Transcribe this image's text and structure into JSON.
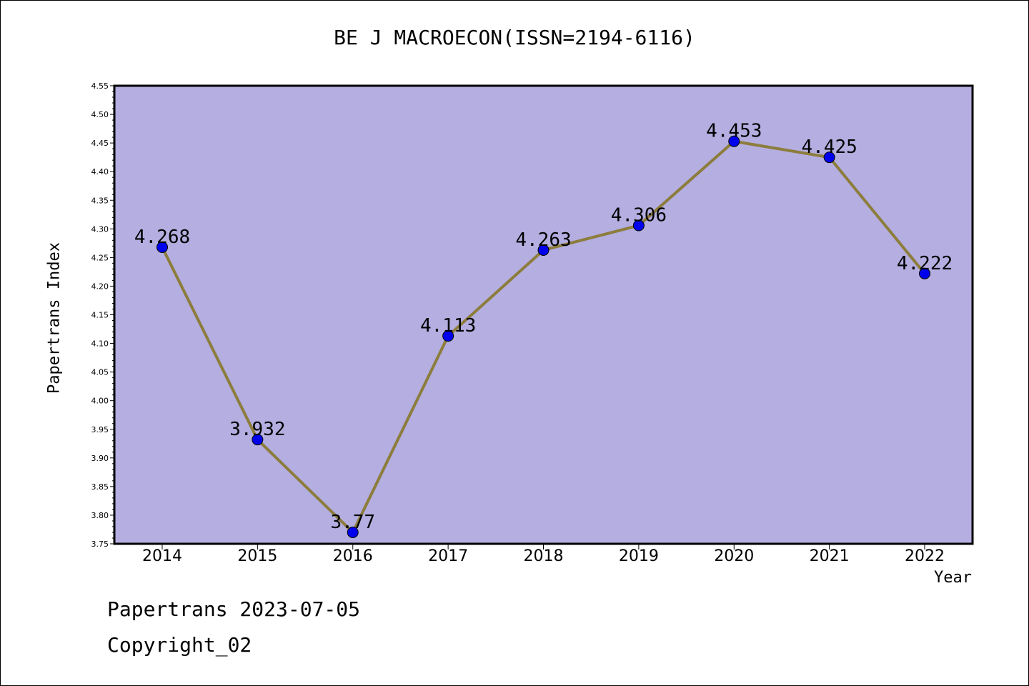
{
  "chart_data": {
    "type": "line",
    "title": "BE J MACROECON(ISSN=2194-6116)",
    "xlabel": "Year",
    "ylabel": "Papertrans Index",
    "categories": [
      "2014",
      "2015",
      "2016",
      "2017",
      "2018",
      "2019",
      "2020",
      "2021",
      "2022"
    ],
    "series": [
      {
        "values": [
          4.268,
          3.932,
          3.77,
          4.113,
          4.263,
          4.306,
          4.453,
          4.425,
          4.222
        ],
        "labels": [
          "4.268",
          "3.932",
          "3.77",
          "4.113",
          "4.263",
          "4.306",
          "4.453",
          "4.425",
          "4.222"
        ]
      }
    ],
    "ylim": [
      3.75,
      4.55
    ],
    "yticks": [
      "3.75",
      "3.80",
      "3.85",
      "3.90",
      "3.95",
      "4.00",
      "4.05",
      "4.10",
      "4.15",
      "4.20",
      "4.25",
      "4.30",
      "4.35",
      "4.40",
      "4.45",
      "4.50",
      "4.55"
    ],
    "grid": false,
    "colors": {
      "plot_background": "#b4aee1",
      "line": "#8c7d3c",
      "marker": "#0000ee",
      "axis": "#000000"
    }
  },
  "footer": {
    "line1": "Papertrans 2023-07-05",
    "line2": "Copyright_02"
  }
}
